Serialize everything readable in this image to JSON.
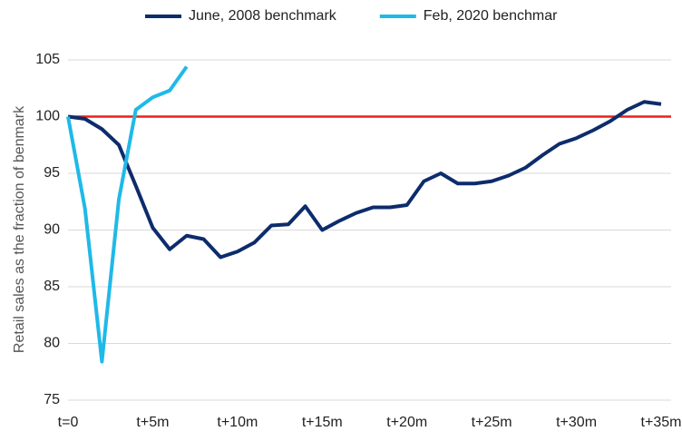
{
  "chart_data": {
    "type": "line",
    "y_label": "Retail sales as the fraction of benmark",
    "categories": [
      "t=0",
      null,
      null,
      null,
      null,
      "t+5m",
      null,
      null,
      null,
      null,
      "t+10m",
      null,
      null,
      null,
      null,
      "t+15m",
      null,
      null,
      null,
      null,
      "t+20m",
      null,
      null,
      null,
      null,
      "t+25m",
      null,
      null,
      null,
      null,
      "t+30m",
      null,
      null,
      null,
      null,
      "t+35m"
    ],
    "series": [
      {
        "name": "June, 2008 benchmark",
        "color": "#0d2c6c",
        "values": [
          100,
          99.8,
          98.9,
          97.5,
          93.9,
          90.2,
          88.3,
          89.5,
          89.2,
          87.6,
          88.1,
          88.9,
          90.4,
          90.5,
          92.1,
          90,
          90.8,
          91.5,
          92,
          92,
          92.2,
          94.3,
          95,
          94.1,
          94.1,
          94.3,
          94.8,
          95.5,
          96.6,
          97.6,
          98.1,
          98.8,
          99.6,
          100.6,
          101.3,
          101.1
        ]
      },
      {
        "name": "Feb, 2020 benchmar",
        "color": "#1fb9e8",
        "values": [
          100,
          91.9,
          78.4,
          92.7,
          100.6,
          101.7,
          102.3,
          104.4,
          null,
          null,
          null,
          null,
          null,
          null,
          null,
          null,
          null,
          null,
          null,
          null,
          null,
          null,
          null,
          null,
          null,
          null,
          null,
          null,
          null,
          null,
          null,
          null,
          null,
          null,
          null,
          null
        ]
      }
    ],
    "reference_line": {
      "value": 100,
      "color": "#e8211c"
    },
    "ylim": [
      75,
      105
    ],
    "yticks": [
      75,
      80,
      85,
      90,
      95,
      100,
      105
    ],
    "grid": true,
    "legend": "top"
  }
}
